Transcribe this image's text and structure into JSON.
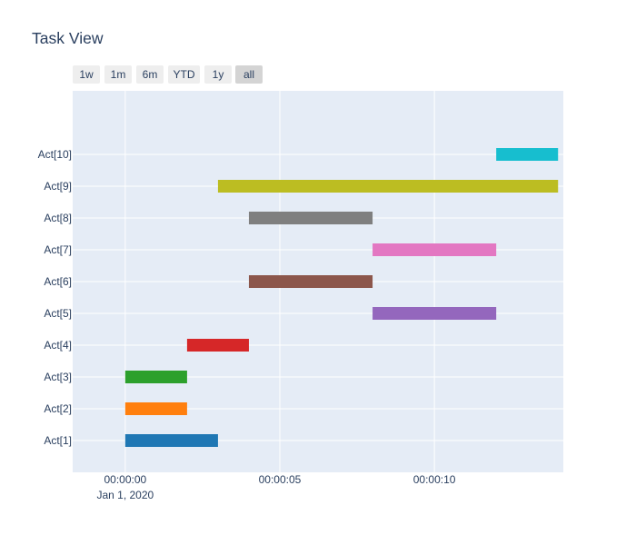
{
  "chart": {
    "title": "Task View"
  },
  "range_selector": {
    "buttons": [
      {
        "label": "1w",
        "active": false
      },
      {
        "label": "1m",
        "active": false
      },
      {
        "label": "6m",
        "active": false
      },
      {
        "label": "YTD",
        "active": false
      },
      {
        "label": "1y",
        "active": false
      },
      {
        "label": "all",
        "active": true
      }
    ]
  },
  "colors": {
    "plot_bg": "#e5ecf6",
    "grid": "#ffffff",
    "text": "#2a3f5f"
  },
  "chart_data": {
    "type": "bar",
    "orientation": "horizontal-timeline",
    "title": "Task View",
    "xlabel": "",
    "ylabel": "",
    "x_axis": {
      "type": "date",
      "range_seconds": [
        -1.7,
        14.17
      ],
      "ticks": [
        {
          "seconds": 0,
          "label": "00:00:00",
          "sublabel": "Jan 1, 2020"
        },
        {
          "seconds": 5,
          "label": "00:00:05",
          "sublabel": ""
        },
        {
          "seconds": 10,
          "label": "00:00:10",
          "sublabel": ""
        }
      ]
    },
    "grid": true,
    "tasks": [
      {
        "name": "Act[1]",
        "start": "2020-01-01 00:00:00",
        "finish": "2020-01-01 00:00:03",
        "color": "#1f77b4"
      },
      {
        "name": "Act[2]",
        "start": "2020-01-01 00:00:00",
        "finish": "2020-01-01 00:00:02",
        "color": "#ff7f0e"
      },
      {
        "name": "Act[3]",
        "start": "2020-01-01 00:00:00",
        "finish": "2020-01-01 00:00:02",
        "color": "#2ca02c"
      },
      {
        "name": "Act[4]",
        "start": "2020-01-01 00:00:02",
        "finish": "2020-01-01 00:00:04",
        "color": "#d62728"
      },
      {
        "name": "Act[5]",
        "start": "2020-01-01 00:00:08",
        "finish": "2020-01-01 00:00:12",
        "color": "#9467bd"
      },
      {
        "name": "Act[6]",
        "start": "2020-01-01 00:00:04",
        "finish": "2020-01-01 00:00:08",
        "color": "#8c564b"
      },
      {
        "name": "Act[7]",
        "start": "2020-01-01 00:00:08",
        "finish": "2020-01-01 00:00:12",
        "color": "#e377c2"
      },
      {
        "name": "Act[8]",
        "start": "2020-01-01 00:00:04",
        "finish": "2020-01-01 00:00:08",
        "color": "#7f7f7f"
      },
      {
        "name": "Act[9]",
        "start": "2020-01-01 00:00:03",
        "finish": "2020-01-01 00:00:14",
        "color": "#bcbd22"
      },
      {
        "name": "Act[10]",
        "start": "2020-01-01 00:00:12",
        "finish": "2020-01-01 00:00:14",
        "color": "#17becf"
      }
    ]
  }
}
